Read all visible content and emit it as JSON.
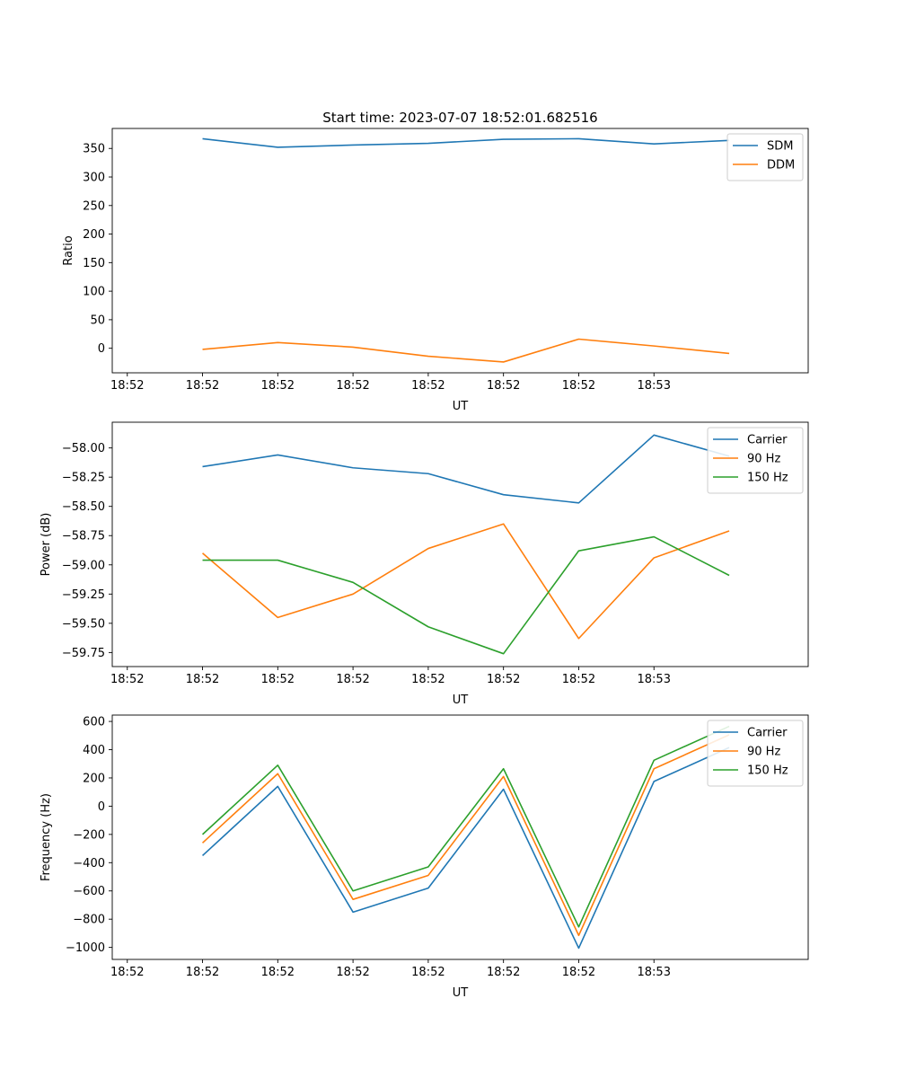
{
  "figure_title": "Start time: 2023-07-07 18:52:01.682516",
  "colors": {
    "blue": "#1f77b4",
    "orange": "#ff7f0e",
    "green": "#2ca02c"
  },
  "chart_data": [
    {
      "type": "line",
      "title": "Start time: 2023-07-07 18:52:01.682516",
      "xlabel": "UT",
      "ylabel": "Ratio",
      "x_ticks": [
        "18:52",
        "18:52",
        "18:52",
        "18:52",
        "18:52",
        "18:52",
        "18:52",
        "18:53"
      ],
      "x_values": [
        1,
        2,
        3,
        4,
        5,
        6,
        7,
        8
      ],
      "xlim": [
        -0.2,
        9.05
      ],
      "ylim": [
        -43,
        385
      ],
      "y_ticks": [
        0,
        50,
        100,
        150,
        200,
        250,
        300,
        350
      ],
      "y_tick_labels": [
        "0",
        "50",
        "100",
        "150",
        "200",
        "250",
        "300",
        "350"
      ],
      "legend_position": "top-right",
      "series": [
        {
          "name": "SDM",
          "color": "#1f77b4",
          "values": [
            367,
            352,
            356,
            359,
            366,
            367,
            358,
            364
          ]
        },
        {
          "name": "DDM",
          "color": "#ff7f0e",
          "values": [
            -2,
            10,
            2,
            -14,
            -24,
            16,
            4,
            -9
          ]
        }
      ]
    },
    {
      "type": "line",
      "title": "",
      "xlabel": "UT",
      "ylabel": "Power (dB)",
      "x_ticks": [
        "18:52",
        "18:52",
        "18:52",
        "18:52",
        "18:52",
        "18:52",
        "18:52",
        "18:53"
      ],
      "x_values": [
        1,
        2,
        3,
        4,
        5,
        6,
        7,
        8
      ],
      "xlim": [
        -0.2,
        9.05
      ],
      "ylim": [
        -59.87,
        -57.78
      ],
      "y_ticks": [
        -59.75,
        -59.5,
        -59.25,
        -59.0,
        -58.75,
        -58.5,
        -58.25,
        -58.0
      ],
      "y_tick_labels": [
        "−59.75",
        "−59.50",
        "−59.25",
        "−59.00",
        "−58.75",
        "−58.50",
        "−58.25",
        "−58.00"
      ],
      "legend_position": "top-right",
      "series": [
        {
          "name": "Carrier",
          "color": "#1f77b4",
          "values": [
            -58.16,
            -58.06,
            -58.17,
            -58.22,
            -58.4,
            -58.47,
            -57.89,
            -58.07
          ]
        },
        {
          "name": "90 Hz",
          "color": "#ff7f0e",
          "values": [
            -58.9,
            -59.45,
            -59.25,
            -58.86,
            -58.65,
            -59.63,
            -58.94,
            -58.71
          ]
        },
        {
          "name": "150 Hz",
          "color": "#2ca02c",
          "values": [
            -58.96,
            -58.96,
            -59.15,
            -59.53,
            -59.76,
            -58.88,
            -58.76,
            -59.09
          ]
        }
      ]
    },
    {
      "type": "line",
      "title": "",
      "xlabel": "UT",
      "ylabel": "Frequency (Hz)",
      "x_ticks": [
        "18:52",
        "18:52",
        "18:52",
        "18:52",
        "18:52",
        "18:52",
        "18:52",
        "18:53"
      ],
      "x_values": [
        1,
        2,
        3,
        4,
        5,
        6,
        7,
        8
      ],
      "xlim": [
        -0.2,
        9.05
      ],
      "ylim": [
        -1085,
        645
      ],
      "y_ticks": [
        -1000,
        -800,
        -600,
        -400,
        -200,
        0,
        200,
        400,
        600
      ],
      "y_tick_labels": [
        "−1000",
        "−800",
        "−600",
        "−400",
        "−200",
        "0",
        "200",
        "400",
        "600"
      ],
      "legend_position": "top-right",
      "series": [
        {
          "name": "Carrier",
          "color": "#1f77b4",
          "values": [
            -350,
            140,
            -750,
            -580,
            120,
            -1005,
            175,
            415
          ]
        },
        {
          "name": "90 Hz",
          "color": "#ff7f0e",
          "values": [
            -260,
            230,
            -660,
            -490,
            210,
            -915,
            265,
            505
          ]
        },
        {
          "name": "150 Hz",
          "color": "#2ca02c",
          "values": [
            -200,
            290,
            -600,
            -430,
            265,
            -855,
            325,
            565
          ]
        }
      ]
    }
  ]
}
